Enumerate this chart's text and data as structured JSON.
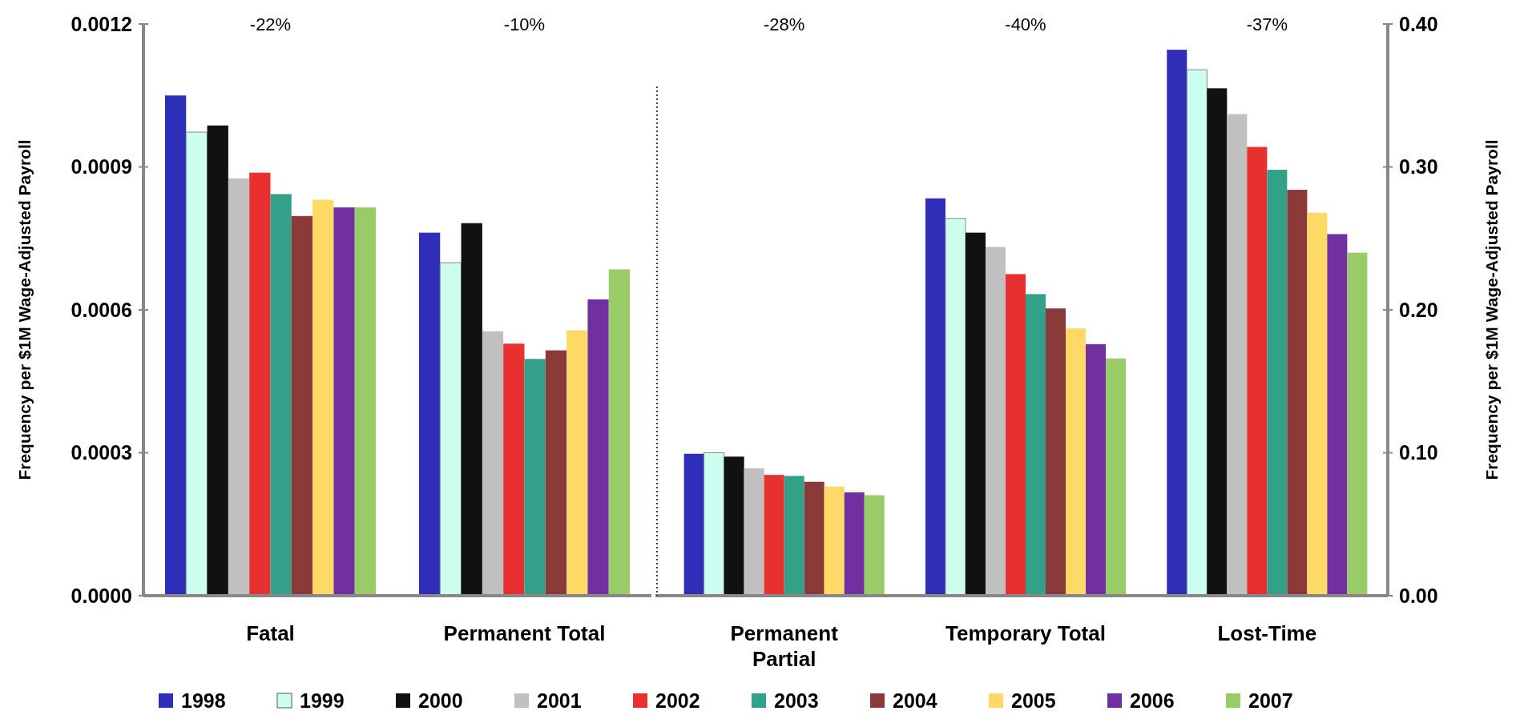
{
  "chart_data": [
    {
      "type": "bar",
      "ylabel": "Frequency per $1M Wage-Adjusted Payroll",
      "categories": [
        "Fatal",
        "Permanent Total"
      ],
      "ylim": [
        0,
        0.0012
      ],
      "yticks": [
        {
          "value": 0,
          "label": "0.0000"
        },
        {
          "value": 0.0003,
          "label": "0.0003"
        },
        {
          "value": 0.0006,
          "label": "0.0006"
        },
        {
          "value": 0.0009,
          "label": "0.0009"
        },
        {
          "value": 0.0012,
          "label": "0.0012"
        }
      ],
      "legend": "bottom",
      "annotations": [
        "-22%",
        "-10%"
      ],
      "series": [
        {
          "name": "1998",
          "color": "#2e2eb8",
          "values": [
            0.00105,
            0.000762
          ]
        },
        {
          "name": "1999",
          "color": "#ccfff0",
          "values": [
            0.000973,
            0.000699
          ]
        },
        {
          "name": "2000",
          "color": "#111111",
          "values": [
            0.000987,
            0.000782
          ]
        },
        {
          "name": "2001",
          "color": "#c0c0c0",
          "values": [
            0.000876,
            0.000555
          ]
        },
        {
          "name": "2002",
          "color": "#e83030",
          "values": [
            0.000888,
            0.000529
          ]
        },
        {
          "name": "2003",
          "color": "#33a08a",
          "values": [
            0.000843,
            0.000497
          ]
        },
        {
          "name": "2004",
          "color": "#8b3a3a",
          "values": [
            0.000797,
            0.000515
          ]
        },
        {
          "name": "2005",
          "color": "#ffd966",
          "values": [
            0.000831,
            0.000557
          ]
        },
        {
          "name": "2006",
          "color": "#7030a0",
          "values": [
            0.000815,
            0.000622
          ]
        },
        {
          "name": "2007",
          "color": "#99cc66",
          "values": [
            0.000815,
            0.000685
          ]
        }
      ]
    },
    {
      "type": "bar",
      "y2label": "Frequency per $1M Wage-Adjusted Payroll",
      "categories": [
        "Permanent Partial",
        "Temporary Total",
        "Lost-Time"
      ],
      "y2lim": [
        0,
        0.4
      ],
      "y2ticks": [
        {
          "value": 0,
          "label": "0.00"
        },
        {
          "value": 0.1,
          "label": "0.10"
        },
        {
          "value": 0.2,
          "label": "0.20"
        },
        {
          "value": 0.3,
          "label": "0.30"
        },
        {
          "value": 0.4,
          "label": "0.40"
        }
      ],
      "annotations": [
        "-28%",
        "-40%",
        "-37%"
      ],
      "series": [
        {
          "color": "#2e2eb8",
          "axis": "y2",
          "values": [
            0.0993,
            0.278,
            0.382
          ]
        },
        {
          "color": "#ccfff0",
          "axis": "y2",
          "values": [
            0.1,
            0.264,
            0.368
          ]
        },
        {
          "color": "#111111",
          "axis": "y2",
          "values": [
            0.0973,
            0.254,
            0.355
          ]
        },
        {
          "color": "#c0c0c0",
          "axis": "y2",
          "values": [
            0.0892,
            0.244,
            0.337
          ]
        },
        {
          "color": "#e83030",
          "axis": "y2",
          "values": [
            0.0845,
            0.225,
            0.314
          ]
        },
        {
          "color": "#33a08a",
          "axis": "y2",
          "values": [
            0.0838,
            0.211,
            0.298
          ]
        },
        {
          "color": "#8b3a3a",
          "axis": "y2",
          "values": [
            0.0797,
            0.201,
            0.284
          ]
        },
        {
          "color": "#ffd966",
          "axis": "y2",
          "values": [
            0.0764,
            0.187,
            0.268
          ]
        },
        {
          "color": "#7030a0",
          "axis": "y2",
          "values": [
            0.0723,
            0.176,
            0.253
          ]
        },
        {
          "color": "#99cc66",
          "axis": "y2",
          "values": [
            0.0703,
            0.166,
            0.24
          ]
        }
      ]
    }
  ]
}
